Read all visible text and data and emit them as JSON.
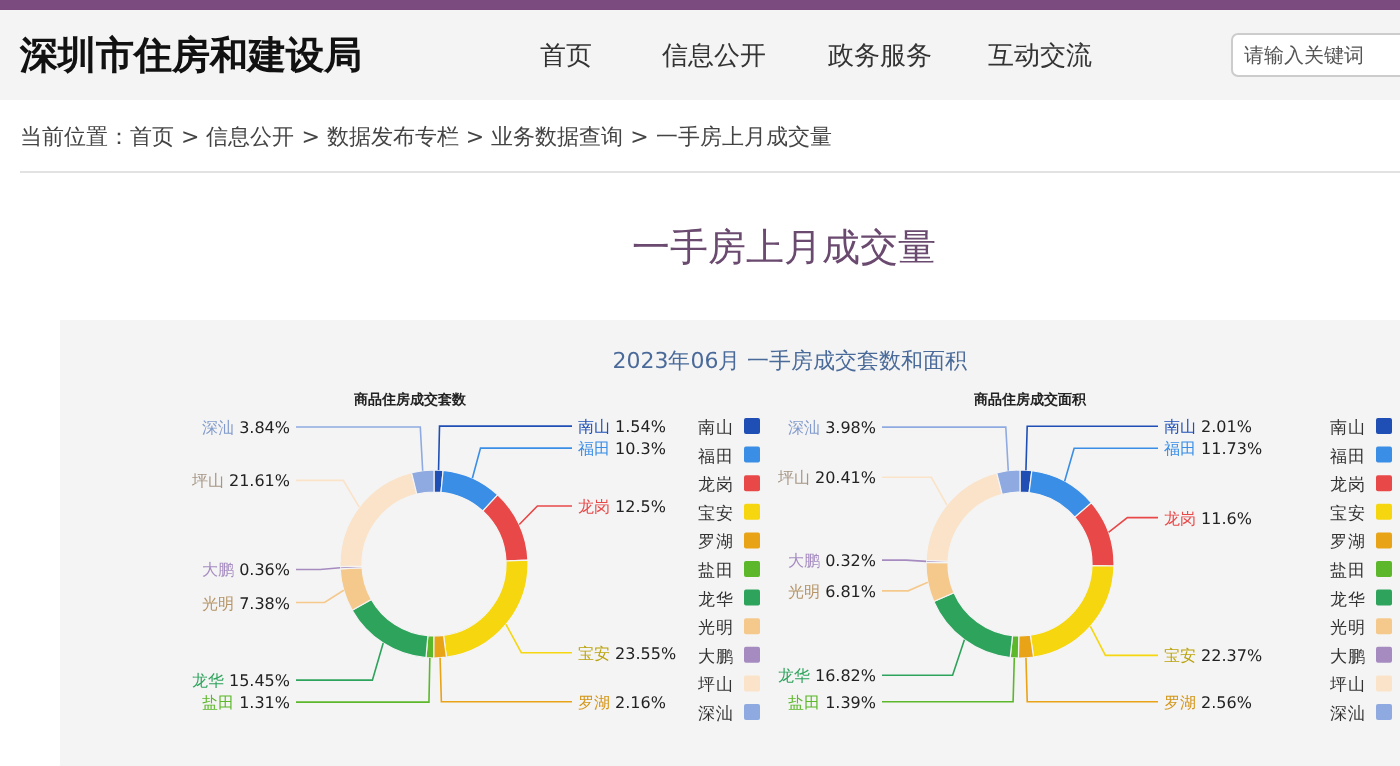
{
  "chart_data": [
    {
      "type": "donut",
      "title": "商品住房成交套数",
      "legend": "right",
      "value_labels": [
        "1.54%",
        "10.3%",
        "12.5%",
        "23.55%",
        "2.16%",
        "1.31%",
        "15.45%",
        "7.38%",
        "0.36%",
        "21.61%",
        "3.84%"
      ],
      "categories": [
        "南山",
        "福田",
        "龙岗",
        "宝安",
        "罗湖",
        "盐田",
        "龙华",
        "光明",
        "大鹏",
        "坪山",
        "深汕"
      ],
      "values": [
        1.54,
        10.3,
        12.5,
        23.55,
        2.16,
        1.31,
        15.45,
        7.38,
        0.36,
        21.61,
        3.84
      ],
      "colors": [
        "#1f4fb4",
        "#3a8ee6",
        "#e84848",
        "#f5d60f",
        "#e8a317",
        "#5cb82a",
        "#2ea35c",
        "#f5c98c",
        "#a58bc0",
        "#fae3c8",
        "#8faae0"
      ],
      "annotations": [
        "深圳市住房和建设局",
        "首页",
        "信息公开",
        "政务服务",
        "互动交流",
        "请输入关键词",
        "当前位置：首页 > 信息公开 > 数据发布专栏 > 业务数据查询 > 一手房上月成交量",
        "一手房上月成交量",
        "2023年06月 一手房成交套数和面积"
      ]
    },
    {
      "type": "donut",
      "title": "商品住房成交面积",
      "legend": "right",
      "value_labels": [
        "2.01%",
        "11.73%",
        "11.6%",
        "22.37%",
        "2.56%",
        "1.39%",
        "16.82%",
        "6.81%",
        "0.32%",
        "20.41%",
        "3.98%"
      ],
      "categories": [
        "南山",
        "福田",
        "龙岗",
        "宝安",
        "罗湖",
        "盐田",
        "龙华",
        "光明",
        "大鹏",
        "坪山",
        "深汕"
      ],
      "values": [
        2.01,
        11.73,
        11.6,
        22.37,
        2.56,
        1.39,
        16.82,
        6.81,
        0.32,
        20.41,
        3.98
      ],
      "colors": [
        "#1f4fb4",
        "#3a8ee6",
        "#e84848",
        "#f5d60f",
        "#e8a317",
        "#5cb82a",
        "#2ea35c",
        "#f5c98c",
        "#a58bc0",
        "#fae3c8",
        "#8faae0"
      ]
    }
  ]
}
